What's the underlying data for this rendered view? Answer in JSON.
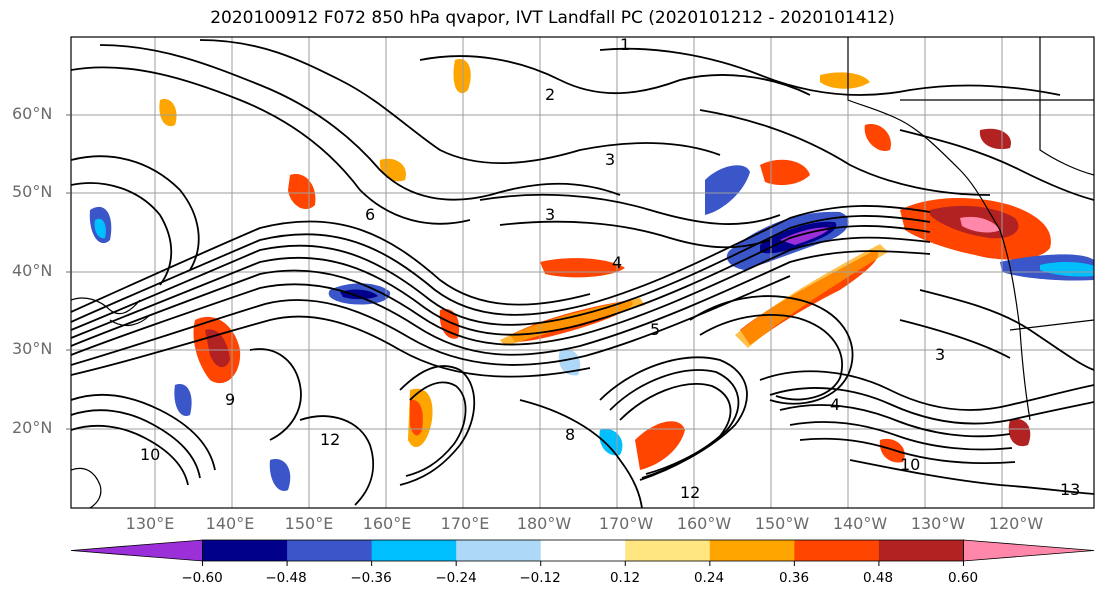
{
  "title": "2020100912 F072 850 hPa qvapor, IVT Landfall PC (2020101212 - 2020101412)",
  "lat_labels": [
    "60°N",
    "50°N",
    "40°N",
    "30°N",
    "20°N"
  ],
  "lon_labels": [
    "130°E",
    "140°E",
    "150°E",
    "160°E",
    "170°E",
    "180°W",
    "170°W",
    "160°W",
    "150°W",
    "140°W",
    "130°W",
    "120°W"
  ],
  "contour_labels": [
    "2",
    "1",
    "3",
    "6",
    "4",
    "5",
    "12",
    "10",
    "8",
    "13",
    "9"
  ],
  "colorbar": {
    "ticks": [
      "−0.60",
      "−0.48",
      "−0.36",
      "−0.24",
      "−0.12",
      "0.12",
      "0.24",
      "0.36",
      "0.48",
      "0.60"
    ],
    "colors": [
      "#9b30d9",
      "#00008b",
      "#3a56c8",
      "#00bfff",
      "#add8f7",
      "#ffffff",
      "#ffe680",
      "#ffa500",
      "#ff4500",
      "#b22222",
      "#ff88aa"
    ]
  }
}
